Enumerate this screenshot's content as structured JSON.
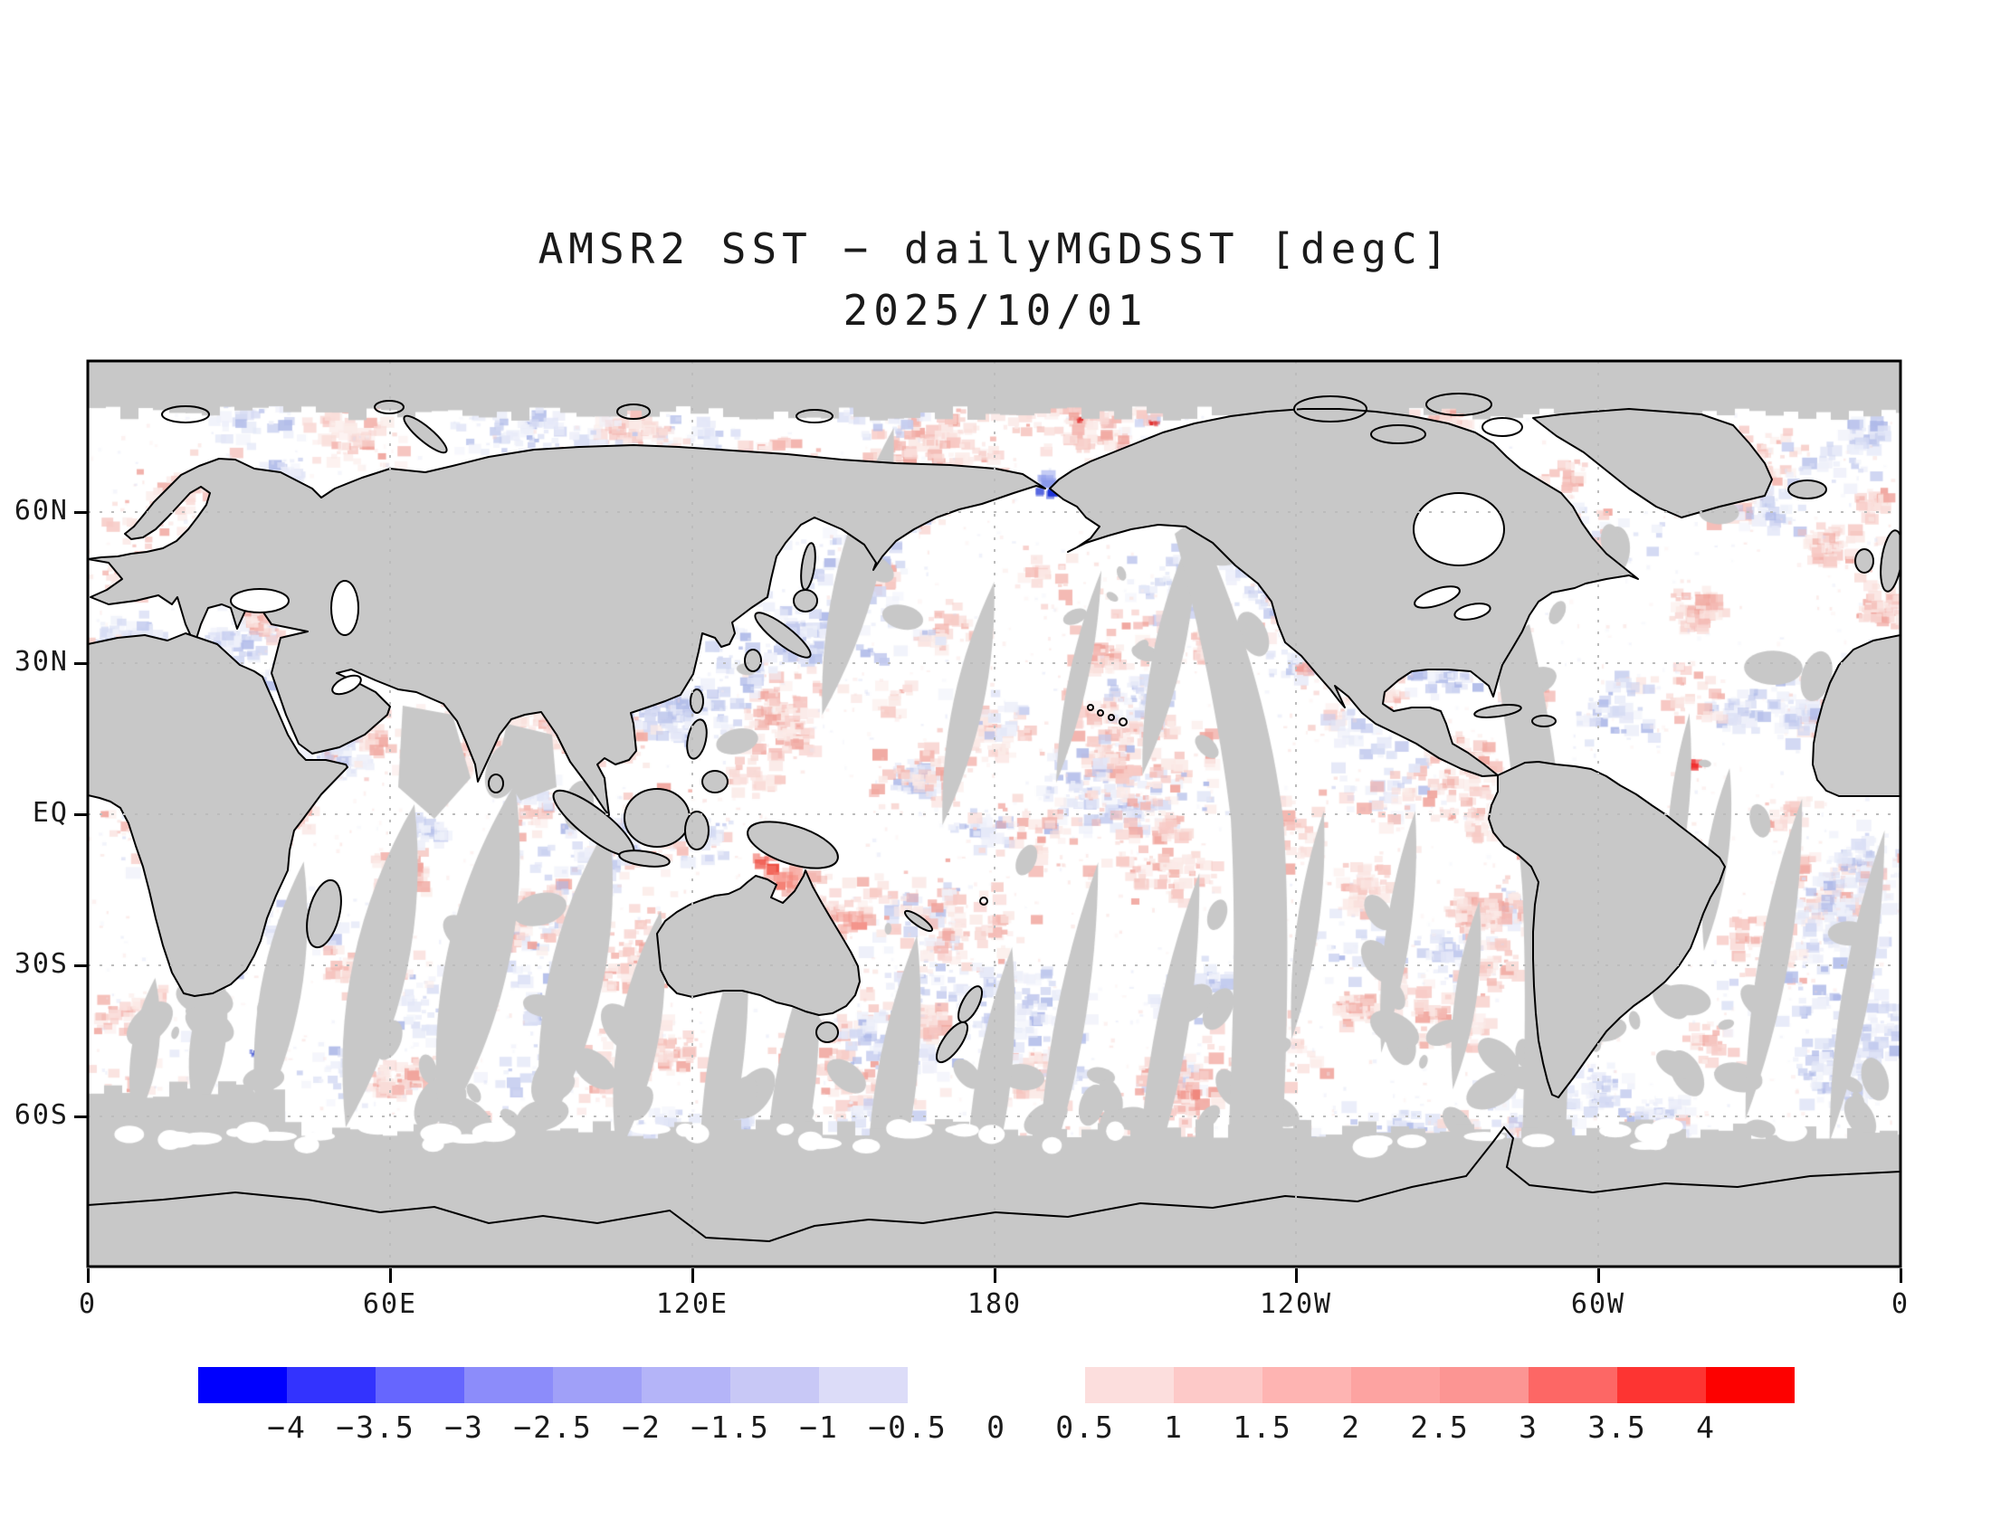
{
  "title": {
    "line1": "AMSR2 SST − dailyMGDSST [degC]",
    "line2": "2025/10/01"
  },
  "axes": {
    "lat_labels": [
      "60N",
      "30N",
      "EQ",
      "30S",
      "60S"
    ],
    "lon_labels": [
      "0",
      "60E",
      "120E",
      "180",
      "120W",
      "60W",
      "0"
    ]
  },
  "colorbar": {
    "labels": [
      "−4",
      "−3.5",
      "−3",
      "−2.5",
      "−2",
      "−1.5",
      "−1",
      "−0.5",
      "0",
      "0.5",
      "1",
      "1.5",
      "2",
      "2.5",
      "3",
      "3.5",
      "4"
    ],
    "blue_colors": [
      "#0000fe",
      "#3333fe",
      "#6666fe",
      "#8c8cfa",
      "#a0a0f8",
      "#b4b4f8",
      "#c8c8f6",
      "#dcdcf8"
    ],
    "red_colors": [
      "#fcdedd",
      "#fdc9c8",
      "#feb4b2",
      "#fda3a1",
      "#fc9593",
      "#fd6765",
      "#fd3432",
      "#fd0100"
    ]
  },
  "map": {
    "land_color": "#c8c8c8",
    "no_data_color": "#c8c8c8",
    "ocean_color": "#ffffff",
    "coastline_color": "#000000",
    "gridline_color": "#bcbcbc",
    "frame_color": "#000000"
  },
  "chart_data": {
    "type": "heatmap",
    "title": "AMSR2 SST − dailyMGDSST [degC]",
    "subtitle": "2025/10/01",
    "date": "2025/10/01",
    "variable": "Sea surface temperature difference: AMSR2 minus dailyMGDSST",
    "units": "degC",
    "projection": "equirectangular world map, Pacific-centered, longitude 0E eastward to 0E",
    "lon_ticks": [
      "0",
      "60E",
      "120E",
      "180",
      "120W",
      "60W",
      "0"
    ],
    "lat_ticks": [
      "60N",
      "30N",
      "EQ",
      "30S",
      "60S"
    ],
    "grid": "dotted graticule every 30 deg latitude and 60 deg longitude",
    "colorbar_values": [
      -4,
      -3.5,
      -3,
      -2.5,
      -2,
      -1.5,
      -1,
      -0.5,
      0,
      0.5,
      1,
      1.5,
      2,
      2.5,
      3,
      3.5,
      4
    ],
    "colorbar_segment_colors": [
      "#0000fe",
      "#3333fe",
      "#6666fe",
      "#8c8cfa",
      "#a0a0f8",
      "#b4b4f8",
      "#c8c8f6",
      "#dcdcf8",
      "#ffffff",
      "#ffffff",
      "#fcdedd",
      "#fdc9c8",
      "#feb4b2",
      "#fda3a1",
      "#fc9593",
      "#fd6765",
      "#fd3432",
      "#fd0100"
    ],
    "legend_position": "two horizontal bars below map; white segments between −0.5 and 0.5 are invisible on white background",
    "gray_regions": "land, polar ice zones and diagonal satellite orbit-gap swaths have no data (gray)",
    "field_character": "differences are mostly within ±1 degC: pale pink (warm) and pale blue (cool) mottling over all oceans; isolated saturated spots include a deep-blue patch near Bering Strait, bright red spots in the Persian Gulf and off northwest Africa, and warm red patches in the Coral Sea / Indonesian seas"
  }
}
